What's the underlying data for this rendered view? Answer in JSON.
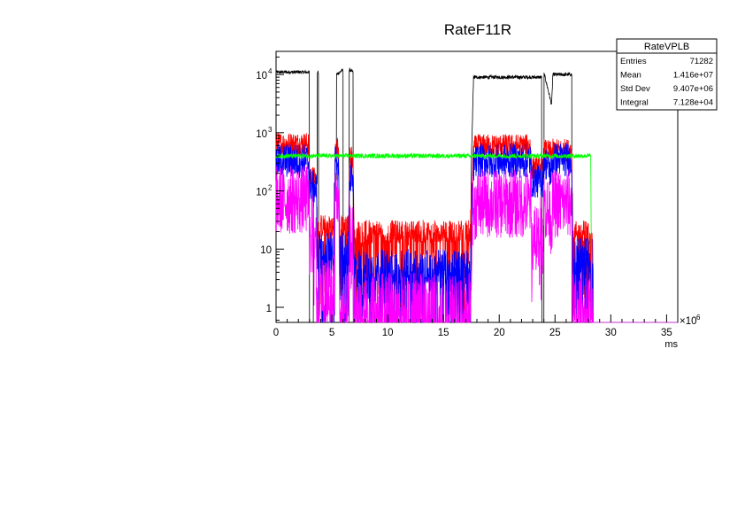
{
  "chart_data": {
    "type": "line",
    "title": "RateF11R",
    "xlabel": "ms",
    "x_multiplier_label": "×10",
    "x_multiplier_exponent": "6",
    "ylabel": "",
    "xlim": [
      0,
      36
    ],
    "ylim": [
      0.55,
      25000
    ],
    "yscale": "log",
    "grid": false,
    "x_ticks": [
      {
        "value": 0,
        "label": "0"
      },
      {
        "value": 5,
        "label": "5"
      },
      {
        "value": 10,
        "label": "10"
      },
      {
        "value": 15,
        "label": "15"
      },
      {
        "value": 20,
        "label": "20"
      },
      {
        "value": 25,
        "label": "25"
      },
      {
        "value": 30,
        "label": "30"
      },
      {
        "value": 35,
        "label": "35"
      }
    ],
    "y_ticks": [
      {
        "value": 1,
        "label": "1"
      },
      {
        "value": 10,
        "label": "10"
      },
      {
        "value": 100,
        "label": "10",
        "exp": "2"
      },
      {
        "value": 1000,
        "label": "10",
        "exp": "3"
      },
      {
        "value": 10000,
        "label": "10",
        "exp": "4"
      }
    ],
    "stats_box": {
      "title": "RateVPLB",
      "rows": [
        {
          "label": "Entries",
          "value": "71282"
        },
        {
          "label": "Mean",
          "value": "1.416e+07"
        },
        {
          "label": "Std Dev",
          "value": "9.407e+06"
        },
        {
          "label": "Integral",
          "value": "7.128e+04"
        }
      ]
    },
    "series": [
      {
        "color": "#000000",
        "noise": 0.03,
        "points": [
          [
            0,
            11000
          ],
          [
            3.0,
            11000
          ],
          [
            3.02,
            0.4
          ],
          [
            3.35,
            0.4
          ],
          [
            3.37,
            150
          ],
          [
            3.7,
            130
          ],
          [
            3.72,
            11000
          ],
          [
            3.82,
            11000
          ],
          [
            3.84,
            0.4
          ],
          [
            5.2,
            0.4
          ],
          [
            5.22,
            130
          ],
          [
            5.4,
            130
          ],
          [
            5.42,
            10000
          ],
          [
            6.0,
            12000
          ],
          [
            6.05,
            0.4
          ],
          [
            6.55,
            0.4
          ],
          [
            6.6,
            12000
          ],
          [
            6.9,
            11000
          ],
          [
            6.95,
            0.4
          ],
          [
            17.4,
            0.4
          ],
          [
            17.5,
            300
          ],
          [
            17.7,
            9000
          ],
          [
            23.8,
            9000
          ],
          [
            23.85,
            0.4
          ],
          [
            24.0,
            0.4
          ],
          [
            24.05,
            10000
          ],
          [
            24.7,
            3000
          ],
          [
            24.8,
            10000
          ],
          [
            26.5,
            10000
          ],
          [
            26.55,
            0.4
          ],
          [
            36,
            0.4
          ]
        ]
      },
      {
        "color": "#ff0000",
        "noise": 0.2,
        "points": [
          [
            0,
            650
          ],
          [
            2.9,
            650
          ],
          [
            3.0,
            180
          ],
          [
            3.6,
            160
          ],
          [
            3.7,
            25
          ],
          [
            5.2,
            25
          ],
          [
            5.3,
            550
          ],
          [
            5.6,
            550
          ],
          [
            5.7,
            25
          ],
          [
            6.5,
            25
          ],
          [
            6.6,
            380
          ],
          [
            6.9,
            380
          ],
          [
            7.0,
            20
          ],
          [
            17.4,
            20
          ],
          [
            17.7,
            550
          ],
          [
            18.0,
            600
          ],
          [
            22.8,
            600
          ],
          [
            22.9,
            250
          ],
          [
            23.9,
            250
          ],
          [
            24.0,
            500
          ],
          [
            24.7,
            450
          ],
          [
            24.8,
            500
          ],
          [
            26.5,
            500
          ],
          [
            26.6,
            20
          ],
          [
            28.4,
            20
          ],
          [
            28.45,
            0.4
          ],
          [
            36,
            0.4
          ]
        ]
      },
      {
        "color": "#0000ff",
        "noise": 0.3,
        "points": [
          [
            0,
            330
          ],
          [
            2.9,
            330
          ],
          [
            3.0,
            130
          ],
          [
            3.6,
            110
          ],
          [
            3.7,
            10
          ],
          [
            5.2,
            10
          ],
          [
            5.3,
            300
          ],
          [
            5.6,
            300
          ],
          [
            5.7,
            10
          ],
          [
            6.5,
            10
          ],
          [
            6.6,
            180
          ],
          [
            6.9,
            180
          ],
          [
            7.0,
            5
          ],
          [
            17.4,
            5
          ],
          [
            17.7,
            280
          ],
          [
            18.0,
            330
          ],
          [
            22.8,
            330
          ],
          [
            22.9,
            150
          ],
          [
            23.9,
            150
          ],
          [
            24.0,
            350
          ],
          [
            24.7,
            200
          ],
          [
            24.8,
            350
          ],
          [
            26.5,
            350
          ],
          [
            26.6,
            8
          ],
          [
            28.4,
            8
          ],
          [
            28.45,
            0.4
          ],
          [
            36,
            0.4
          ]
        ]
      },
      {
        "color": "#00ff00",
        "noise": 0.04,
        "points": [
          [
            0,
            400
          ],
          [
            28.2,
            400
          ],
          [
            28.3,
            0.4
          ],
          [
            36,
            0.4
          ]
        ]
      },
      {
        "color": "#ff00ff",
        "noise": 0.6,
        "points": [
          [
            0,
            70
          ],
          [
            2.9,
            70
          ],
          [
            3.0,
            25
          ],
          [
            3.6,
            25
          ],
          [
            3.7,
            2
          ],
          [
            5.2,
            2
          ],
          [
            5.3,
            90
          ],
          [
            5.6,
            90
          ],
          [
            5.7,
            1
          ],
          [
            6.5,
            1
          ],
          [
            6.6,
            15
          ],
          [
            6.9,
            15
          ],
          [
            7.0,
            1
          ],
          [
            17.4,
            1
          ],
          [
            17.6,
            45
          ],
          [
            18.0,
            60
          ],
          [
            22.8,
            60
          ],
          [
            22.9,
            20
          ],
          [
            23.9,
            20
          ],
          [
            24.0,
            60
          ],
          [
            24.7,
            30
          ],
          [
            24.8,
            60
          ],
          [
            26.5,
            60
          ],
          [
            26.6,
            1
          ],
          [
            28.4,
            1
          ],
          [
            28.45,
            0.4
          ],
          [
            36,
            0.4
          ]
        ]
      }
    ]
  }
}
